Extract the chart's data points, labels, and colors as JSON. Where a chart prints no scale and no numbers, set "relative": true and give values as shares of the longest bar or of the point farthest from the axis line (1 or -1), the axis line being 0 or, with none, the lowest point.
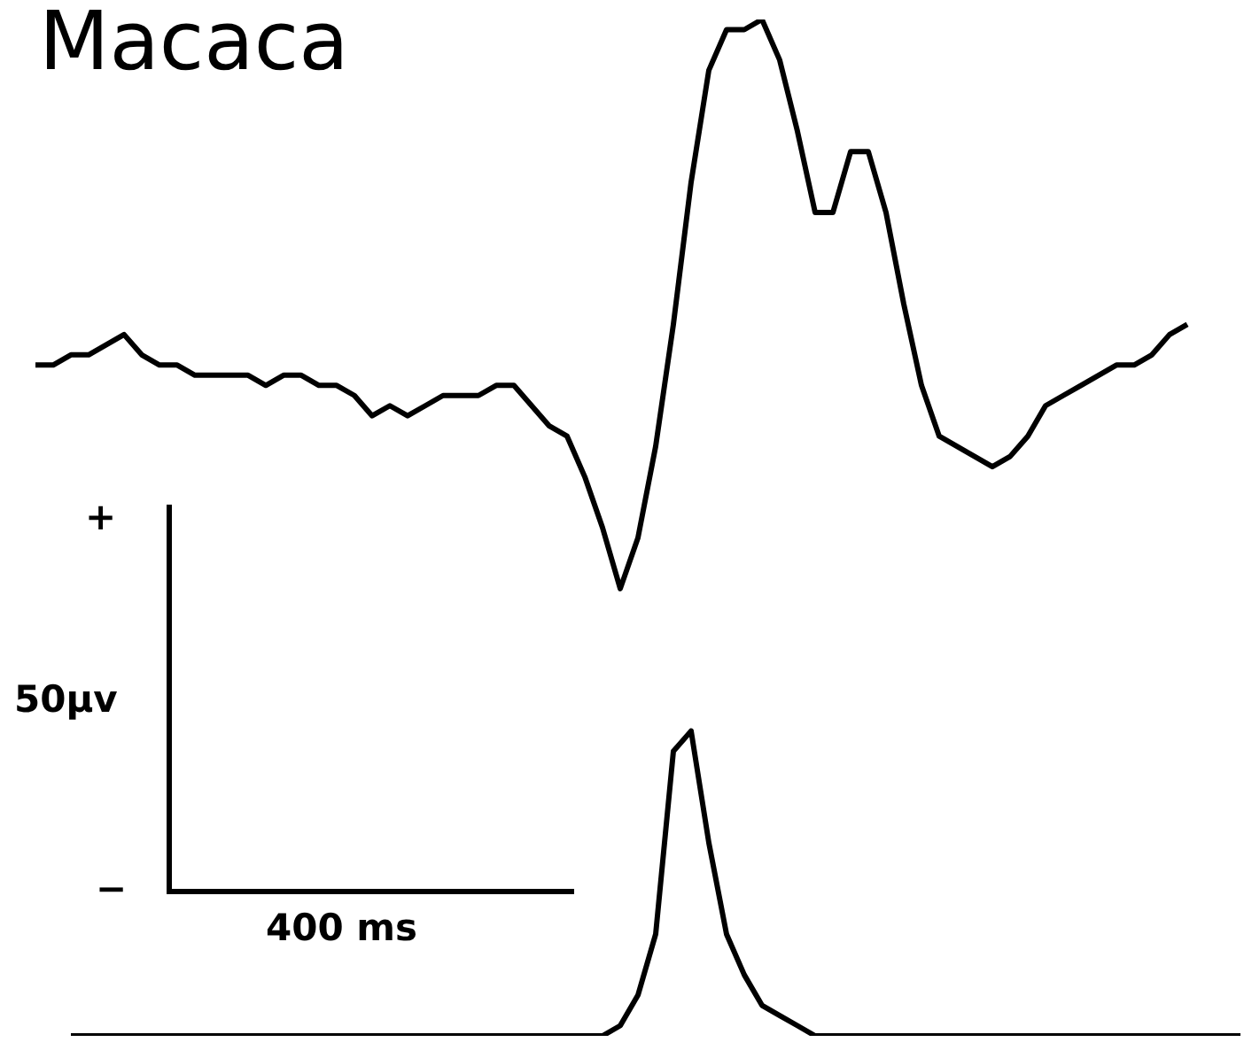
{
  "chart_data": {
    "type": "line",
    "title": "Macaca",
    "relative": true,
    "line_style": "solid",
    "categories": [
      null,
      null,
      null,
      null,
      null,
      null,
      null,
      null,
      null,
      null,
      null,
      null,
      null,
      null,
      null,
      null,
      null,
      null,
      null,
      null,
      null,
      null,
      null,
      null,
      null,
      null,
      null,
      null,
      null,
      null,
      null,
      null,
      null,
      null,
      null,
      null,
      null,
      null,
      null,
      null,
      null,
      null,
      null,
      null,
      null,
      null,
      null,
      null,
      null,
      null,
      null,
      null,
      null,
      null,
      null,
      null,
      null,
      null,
      null,
      null,
      null,
      null,
      null,
      null,
      null,
      null,
      null,
      null,
      null
    ],
    "series": [
      {
        "color": "#000000",
        "values": [
          0.66,
          0.66,
          0.67,
          0.67,
          0.68,
          0.69,
          0.67,
          0.66,
          0.66,
          0.65,
          0.65,
          0.65,
          0.65,
          0.64,
          0.65,
          0.65,
          0.64,
          0.64,
          0.63,
          0.61,
          0.62,
          0.61,
          0.62,
          0.63,
          0.63,
          0.63,
          0.64,
          0.64,
          0.62,
          0.6,
          0.59,
          0.55,
          0.5,
          0.44,
          0.49,
          0.58,
          0.7,
          0.84,
          0.95,
          0.99,
          0.99,
          1.0,
          0.96,
          0.89,
          0.81,
          0.81,
          0.87,
          0.87,
          0.81,
          0.72,
          0.64,
          0.59,
          0.58,
          0.57,
          0.56,
          0.57,
          0.59,
          0.62,
          0.63,
          0.64,
          0.65,
          0.66,
          0.66,
          0.67,
          0.69,
          0.7,
          null,
          null,
          null
        ]
      },
      {
        "color": "#000000",
        "values": [
          null,
          null,
          0,
          0,
          0,
          0,
          0,
          0,
          0,
          0,
          0,
          0,
          0,
          0,
          0,
          0,
          0,
          0,
          0,
          0,
          0,
          0,
          0,
          0,
          0,
          0,
          0,
          0,
          0,
          0,
          0,
          0,
          0,
          0.01,
          0.04,
          0.1,
          0.28,
          0.3,
          0.19,
          0.1,
          0.06,
          0.03,
          0.02,
          0.01,
          0,
          0,
          0,
          0,
          0,
          0,
          0,
          0,
          0,
          0,
          0,
          0,
          0,
          0,
          0,
          0,
          0,
          0,
          0,
          0,
          0,
          0,
          0,
          0,
          0
        ]
      }
    ],
    "annotations": [
      "+",
      "−",
      "50µv",
      "400 ms"
    ]
  }
}
